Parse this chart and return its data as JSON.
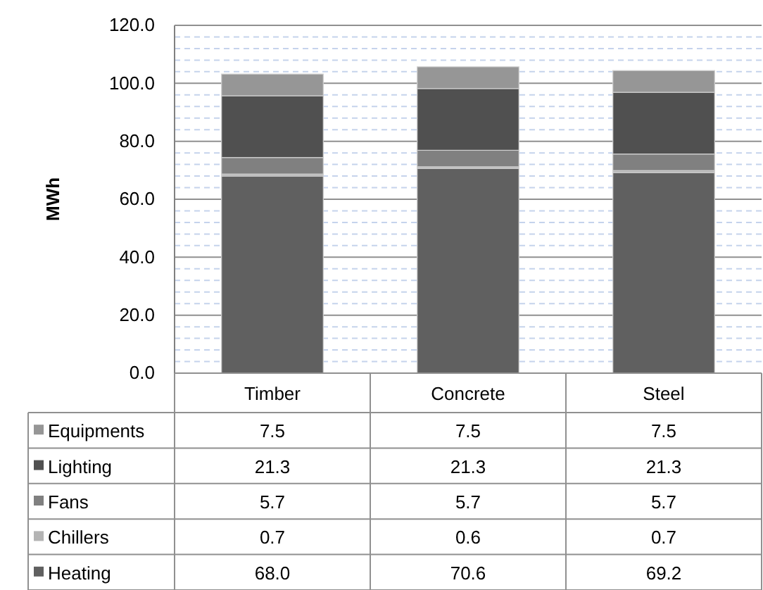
{
  "chart_data": {
    "type": "bar",
    "stacked": true,
    "ylabel": "MWh",
    "categories": [
      "Timber",
      "Concrete",
      "Steel"
    ],
    "series": [
      {
        "name": "Heating",
        "color": "#606060",
        "values": [
          68.0,
          70.6,
          69.2
        ],
        "value_labels": [
          "68.0",
          "70.6",
          "69.2"
        ]
      },
      {
        "name": "Chillers",
        "color": "#b4b4b4",
        "values": [
          0.7,
          0.6,
          0.7
        ],
        "value_labels": [
          "0.7",
          "0.6",
          "0.7"
        ]
      },
      {
        "name": "Fans",
        "color": "#808080",
        "values": [
          5.7,
          5.7,
          5.7
        ],
        "value_labels": [
          "5.7",
          "5.7",
          "5.7"
        ]
      },
      {
        "name": "Lighting",
        "color": "#505050",
        "values": [
          21.3,
          21.3,
          21.3
        ],
        "value_labels": [
          "21.3",
          "21.3",
          "21.3"
        ]
      },
      {
        "name": "Equipments",
        "color": "#969696",
        "values": [
          7.5,
          7.5,
          7.5
        ],
        "value_labels": [
          "7.5",
          "7.5",
          "7.5"
        ]
      }
    ],
    "ylim": [
      0,
      120
    ],
    "yticks": [
      {
        "value": 0,
        "label": "0.0"
      },
      {
        "value": 4,
        "label": null
      },
      {
        "value": 8,
        "label": null
      },
      {
        "value": 12,
        "label": null
      },
      {
        "value": 16,
        "label": null
      },
      {
        "value": 20,
        "label": "20.0"
      },
      {
        "value": 24,
        "label": null
      },
      {
        "value": 28,
        "label": null
      },
      {
        "value": 32,
        "label": null
      },
      {
        "value": 36,
        "label": null
      },
      {
        "value": 40,
        "label": "40.0"
      },
      {
        "value": 44,
        "label": null
      },
      {
        "value": 48,
        "label": null
      },
      {
        "value": 52,
        "label": null
      },
      {
        "value": 56,
        "label": null
      },
      {
        "value": 60,
        "label": "60.0"
      },
      {
        "value": 64,
        "label": null
      },
      {
        "value": 68,
        "label": null
      },
      {
        "value": 72,
        "label": null
      },
      {
        "value": 76,
        "label": null
      },
      {
        "value": 80,
        "label": "80.0"
      },
      {
        "value": 84,
        "label": null
      },
      {
        "value": 88,
        "label": null
      },
      {
        "value": 92,
        "label": null
      },
      {
        "value": 96,
        "label": null
      },
      {
        "value": 100,
        "label": "100.0"
      },
      {
        "value": 104,
        "label": null
      },
      {
        "value": 108,
        "label": null
      },
      {
        "value": 112,
        "label": null
      },
      {
        "value": 116,
        "label": null
      },
      {
        "value": 120,
        "label": "120.0"
      }
    ],
    "grid": true,
    "legend": "bottom"
  }
}
